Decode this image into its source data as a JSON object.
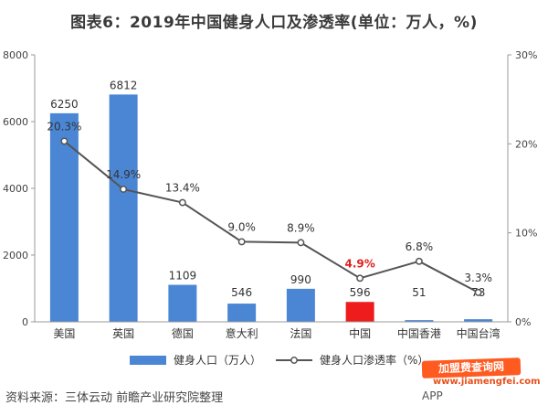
{
  "title": "图表6：2019年中国健身人口及渗透率(单位：万人，%)",
  "source": "资料来源：三体云动 前瞻产业研究院整理",
  "watermark": {
    "badge": "加盟费查询网",
    "url": "www.jiamengfei.com",
    "app": "APP"
  },
  "chart_data": {
    "type": "bar+line",
    "categories": [
      "美国",
      "英国",
      "德国",
      "意大利",
      "法国",
      "中国",
      "中国香港",
      "中国台湾"
    ],
    "bar_series": {
      "name": "健身人口（万人）",
      "values": [
        6250,
        6812,
        1109,
        546,
        990,
        596,
        51,
        78
      ],
      "color": "#4a86d4",
      "highlight_index": 5,
      "highlight_color": "#ee1c1c"
    },
    "line_series": {
      "name": "健身人口渗透率（%）",
      "values": [
        20.3,
        14.9,
        13.4,
        9.0,
        8.9,
        4.9,
        6.8,
        3.3
      ],
      "labels": [
        "20.3%",
        "14.9%",
        "13.4%",
        "9.0%",
        "8.9%",
        "4.9%",
        "6.8%",
        "3.3%"
      ],
      "color": "#555555"
    },
    "y_left": {
      "min": 0,
      "max": 8000,
      "ticks": [
        "0",
        "2000",
        "4000",
        "6000",
        "8000"
      ]
    },
    "y_right": {
      "min": 0,
      "max": 30,
      "ticks": [
        "0%",
        "10%",
        "20%",
        "30%"
      ]
    },
    "legend_position": "bottom"
  }
}
